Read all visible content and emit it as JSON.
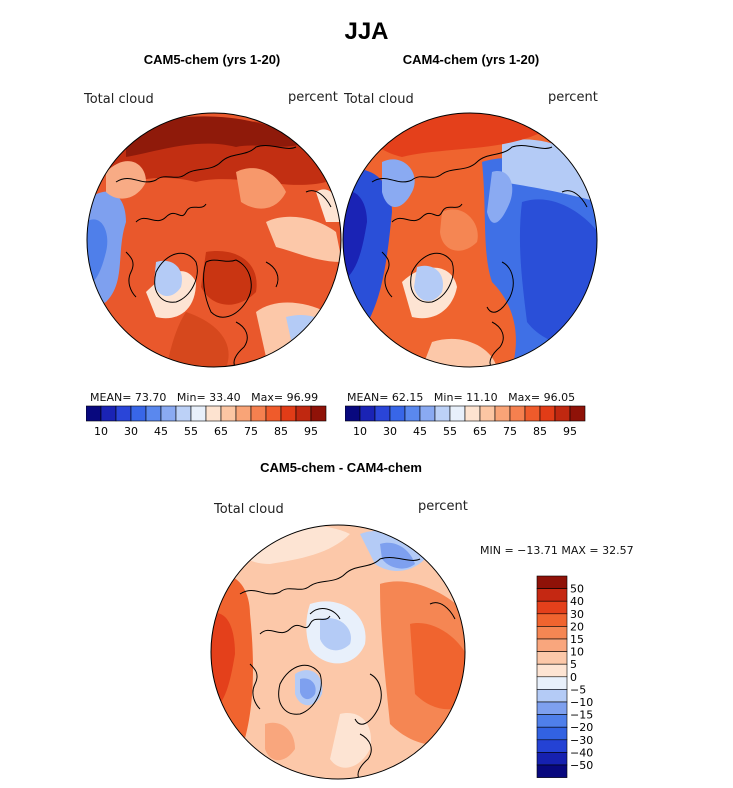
{
  "page": {
    "title": "JJA"
  },
  "palettes": {
    "sequential": [
      "#08087e",
      "#1a23b5",
      "#2a45d8",
      "#3866e8",
      "#5a88ee",
      "#8aaaf2",
      "#bcd1f7",
      "#e8f0fb",
      "#fde3d0",
      "#fcc6a3",
      "#f9a477",
      "#f5804f",
      "#ef5b2b",
      "#e13c17",
      "#c02810",
      "#8f1208"
    ],
    "diverging": [
      "#08087e",
      "#1621b0",
      "#2442d4",
      "#3262e2",
      "#4f7fea",
      "#7ea0ef",
      "#b4cbf6",
      "#e8f0fb",
      "#fde4d3",
      "#fcc8a9",
      "#f9a67d",
      "#f58653",
      "#f0642f",
      "#e4401b",
      "#c52812",
      "#8f1208"
    ]
  },
  "panels": [
    {
      "id": "cam5",
      "title": "CAM5-chem (yrs 1-20)",
      "field_label": "Total cloud",
      "units": "percent",
      "stats": {
        "mean_label": "MEAN=",
        "mean": "73.70",
        "min_label": "Min=",
        "min": "33.40",
        "max_label": "Max=",
        "max": "96.99"
      },
      "colorbar_ticks": [
        "10",
        "30",
        "45",
        "55",
        "65",
        "75",
        "85",
        "95"
      ]
    },
    {
      "id": "cam4",
      "title": "CAM4-chem (yrs 1-20)",
      "field_label": "Total cloud",
      "units": "percent",
      "stats": {
        "mean_label": "MEAN=",
        "mean": "62.15",
        "min_label": "Min=",
        "min": "11.10",
        "max_label": "Max=",
        "max": "96.05"
      },
      "colorbar_ticks": [
        "10",
        "30",
        "45",
        "55",
        "65",
        "75",
        "85",
        "95"
      ]
    }
  ],
  "difference": {
    "title": "CAM5-chem - CAM4-chem",
    "field_label": "Total cloud",
    "units": "percent",
    "minmax": "MIN = −13.71  MAX =   32.57",
    "colorbar_labels": [
      "50",
      "40",
      "30",
      "20",
      "15",
      "10",
      "5",
      "0",
      "−5",
      "−10",
      "−15",
      "−20",
      "−30",
      "−40",
      "−50"
    ]
  },
  "chart_data": [
    {
      "type": "heatmap",
      "projection": "north-polar-stereographic",
      "title": "CAM5-chem (yrs 1-20)",
      "field": "Total cloud",
      "units": "percent",
      "mean": 73.7,
      "min": 33.4,
      "max": 96.99,
      "colorbar_ticks": [
        10,
        30,
        45,
        55,
        65,
        75,
        85,
        95
      ]
    },
    {
      "type": "heatmap",
      "projection": "north-polar-stereographic",
      "title": "CAM4-chem (yrs 1-20)",
      "field": "Total cloud",
      "units": "percent",
      "mean": 62.15,
      "min": 11.1,
      "max": 96.05,
      "colorbar_ticks": [
        10,
        30,
        45,
        55,
        65,
        75,
        85,
        95
      ]
    },
    {
      "type": "heatmap",
      "projection": "north-polar-stereographic",
      "title": "CAM5-chem - CAM4-chem",
      "field": "Total cloud",
      "units": "percent",
      "min": -13.71,
      "max": 32.57,
      "colorbar_levels": [
        50,
        40,
        30,
        20,
        15,
        10,
        5,
        0,
        -5,
        -10,
        -15,
        -20,
        -30,
        -40,
        -50
      ]
    }
  ]
}
